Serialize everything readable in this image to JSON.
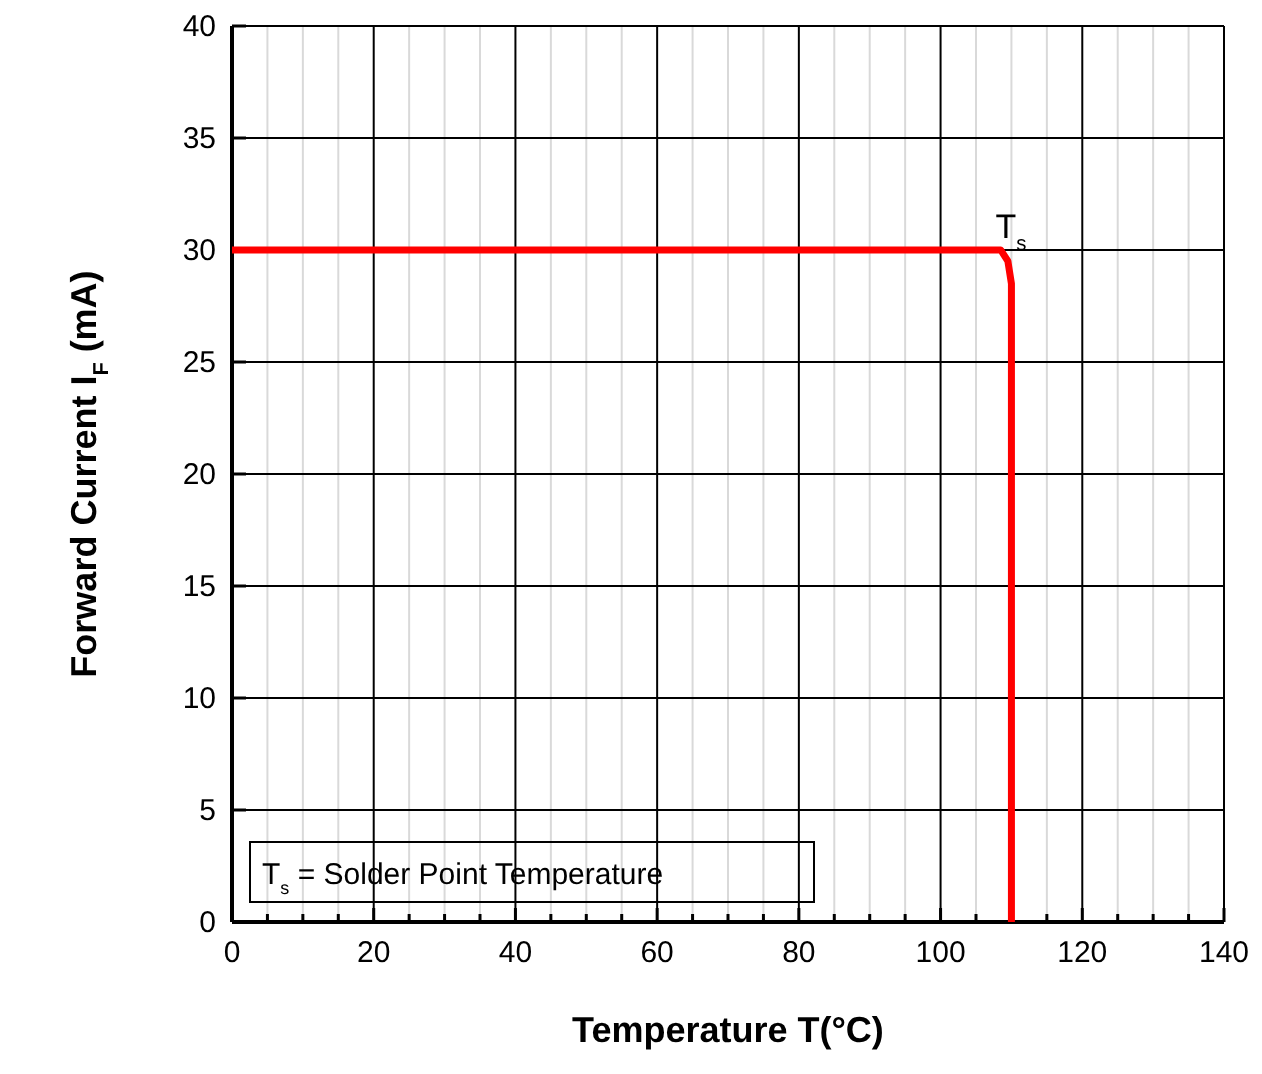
{
  "chart_data": {
    "type": "line",
    "xlabel": "Temperature T(°C)",
    "ylabel": "Forward Current I$_{F}$ (mA)",
    "x": [
      0,
      108.5,
      109.5,
      110,
      110
    ],
    "series": [
      {
        "color": "#ff0000",
        "values": [
          30,
          30,
          29.5,
          28.5,
          0
        ]
      }
    ],
    "xlim": [
      0,
      140
    ],
    "ylim": [
      0,
      40
    ],
    "xticks": [
      0,
      {
        "value": 5,
        "label": null
      },
      {
        "value": 10,
        "label": null
      },
      {
        "value": 15,
        "label": null
      },
      20,
      {
        "value": 25,
        "label": null
      },
      {
        "value": 30,
        "label": null
      },
      {
        "value": 35,
        "label": null
      },
      40,
      {
        "value": 45,
        "label": null
      },
      {
        "value": 50,
        "label": null
      },
      {
        "value": 55,
        "label": null
      },
      60,
      {
        "value": 65,
        "label": null
      },
      {
        "value": 70,
        "label": null
      },
      {
        "value": 75,
        "label": null
      },
      80,
      {
        "value": 85,
        "label": null
      },
      {
        "value": 90,
        "label": null
      },
      {
        "value": 95,
        "label": null
      },
      100,
      {
        "value": 105,
        "label": null
      },
      {
        "value": 110,
        "label": null
      },
      {
        "value": 115,
        "label": null
      },
      120,
      {
        "value": 125,
        "label": null
      },
      {
        "value": 130,
        "label": null
      },
      {
        "value": 135,
        "label": null
      },
      140
    ],
    "yticks": [
      0,
      5,
      10,
      15,
      20,
      25,
      30,
      35,
      40
    ],
    "grid": true,
    "marker": "none",
    "line_style": "solid",
    "annotations": [
      {
        "text": "T$_{s}$",
        "x": 110,
        "y": 30
      },
      "T$_{s}$ = Solder Point Temperature"
    ]
  }
}
